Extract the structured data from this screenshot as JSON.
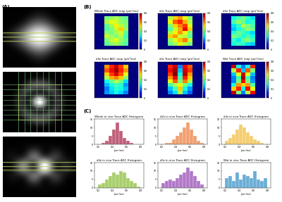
{
  "panel_labels": [
    "(A)",
    "(B)",
    "(C)"
  ],
  "chart_data": [
    {
      "type": "heatmap",
      "title": "Whole Trace ADC map (μm²/ms)",
      "tick_labels": false,
      "colorbar_range": [
        0,
        0.8
      ],
      "colorbar_ticks": [
        0,
        0.2,
        0.4,
        0.6,
        0.8
      ],
      "cells": [
        [
          0,
          0,
          0,
          0,
          0,
          0,
          0,
          0,
          0
        ],
        [
          0,
          0,
          0.4,
          0.42,
          0.45,
          0.4,
          0.38,
          0,
          0
        ],
        [
          0,
          0,
          0.45,
          0.5,
          0.48,
          0.42,
          0.4,
          0,
          0
        ],
        [
          0,
          0,
          0.38,
          0.44,
          0.52,
          0.46,
          0.41,
          0,
          0
        ],
        [
          0,
          0,
          0.36,
          0.4,
          0.47,
          0.55,
          0.43,
          0,
          0
        ],
        [
          0,
          0,
          0.42,
          0.39,
          0.44,
          0.48,
          0.37,
          0,
          0
        ],
        [
          0,
          0,
          0.47,
          0.43,
          0.4,
          0.45,
          0.35,
          0,
          0
        ],
        [
          0,
          0,
          0.4,
          0.46,
          0.5,
          0.42,
          0.38,
          0,
          0
        ],
        [
          0,
          0,
          0.37,
          0.41,
          0.44,
          0.4,
          0.36,
          0,
          0
        ],
        [
          0,
          0,
          0,
          0,
          0,
          0,
          0,
          0,
          0
        ]
      ]
    },
    {
      "type": "heatmap",
      "title": "d2z Trace ADC map (μm²/ms)",
      "tick_labels": false,
      "colorbar_range": [
        0,
        0.8
      ],
      "colorbar_ticks": [
        0,
        0.2,
        0.4,
        0.6,
        0.8
      ],
      "cells": [
        [
          0,
          0,
          0,
          0,
          0,
          0,
          0,
          0,
          0
        ],
        [
          0,
          0,
          0.45,
          0.55,
          0.6,
          0.5,
          0.42,
          0,
          0
        ],
        [
          0,
          0,
          0.5,
          0.65,
          0.7,
          0.58,
          0.45,
          0,
          0
        ],
        [
          0,
          0,
          0.4,
          0.55,
          0.62,
          0.68,
          0.5,
          0,
          0
        ],
        [
          0,
          0,
          0.35,
          0.48,
          0.58,
          0.72,
          0.55,
          0,
          0
        ],
        [
          0,
          0,
          0.45,
          0.52,
          0.6,
          0.5,
          0.4,
          0,
          0
        ],
        [
          0,
          0,
          0.55,
          0.6,
          0.48,
          0.45,
          0.38,
          0,
          0
        ],
        [
          0,
          0,
          0.42,
          0.5,
          0.56,
          0.62,
          0.47,
          0,
          0
        ],
        [
          0,
          0,
          0.38,
          0.44,
          0.5,
          0.46,
          0.4,
          0,
          0
        ],
        [
          0,
          0,
          0,
          0,
          0,
          0,
          0,
          0,
          0
        ]
      ]
    },
    {
      "type": "heatmap",
      "title": "d3z Trace ADC map (μm²/ms)",
      "tick_labels": false,
      "colorbar_range": [
        0,
        0.8
      ],
      "colorbar_ticks": [
        0,
        0.2,
        0.4,
        0.6,
        0.8
      ],
      "cells": [
        [
          0,
          0,
          0,
          0,
          0,
          0,
          0,
          0,
          0
        ],
        [
          0,
          0,
          0.3,
          0.35,
          0.4,
          0.33,
          0.28,
          0,
          0
        ],
        [
          0,
          0,
          0.35,
          0.42,
          0.38,
          0.3,
          0.32,
          0,
          0
        ],
        [
          0,
          0,
          0.28,
          0.33,
          0.45,
          0.4,
          0.35,
          0,
          0
        ],
        [
          0,
          0,
          0.25,
          0.3,
          0.36,
          0.42,
          0.38,
          0,
          0
        ],
        [
          0,
          0,
          0.32,
          0.38,
          0.34,
          0.3,
          0.27,
          0,
          0
        ],
        [
          0,
          0,
          0.4,
          0.36,
          0.31,
          0.35,
          0.3,
          0,
          0
        ],
        [
          0,
          0,
          0.33,
          0.29,
          0.37,
          0.41,
          0.34,
          0,
          0
        ],
        [
          0,
          0,
          0.3,
          0.34,
          0.32,
          0.28,
          0.26,
          0,
          0
        ],
        [
          0,
          0,
          0,
          0,
          0,
          0,
          0,
          0,
          0
        ]
      ]
    },
    {
      "type": "heatmap",
      "title": "d4z Trace ADC map (μm²/ms)",
      "tick_labels": false,
      "colorbar_range": [
        0,
        0.8
      ],
      "colorbar_ticks": [
        0,
        0.2,
        0.4,
        0.6,
        0.8
      ],
      "cells": [
        [
          0,
          0,
          0,
          0,
          0,
          0,
          0,
          0,
          0
        ],
        [
          0,
          0,
          0.6,
          0.7,
          0.75,
          0.68,
          0.55,
          0,
          0
        ],
        [
          0,
          0,
          0.65,
          0.72,
          0.78,
          0.7,
          0.6,
          0,
          0
        ],
        [
          0,
          0,
          0.55,
          0.68,
          0.74,
          0.66,
          0.5,
          0,
          0
        ],
        [
          0,
          0,
          0.45,
          0.58,
          0.62,
          0.55,
          0.42,
          0,
          0
        ],
        [
          0,
          0,
          0.3,
          0.38,
          0.45,
          0.4,
          0.28,
          0,
          0
        ],
        [
          0,
          0,
          0.25,
          0.3,
          0.35,
          0.32,
          0.22,
          0,
          0
        ],
        [
          0,
          0,
          0.2,
          0.28,
          0.32,
          0.3,
          0.25,
          0,
          0
        ],
        [
          0,
          0,
          0.22,
          0.26,
          0.3,
          0.27,
          0.2,
          0,
          0
        ],
        [
          0,
          0,
          0,
          0,
          0,
          0,
          0,
          0,
          0
        ]
      ]
    },
    {
      "type": "heatmap",
      "title": "d5z Trace ADC map (μm²/ms)",
      "tick_labels": false,
      "colorbar_range": [
        0,
        0.8
      ],
      "colorbar_ticks": [
        0,
        0.2,
        0.4,
        0.6,
        0.8
      ],
      "cells": [
        [
          0,
          0,
          0,
          0,
          0,
          0,
          0,
          0,
          0
        ],
        [
          0,
          0,
          0.7,
          0.75,
          0.2,
          0.72,
          0.65,
          0,
          0
        ],
        [
          0,
          0,
          0.72,
          0.78,
          0.25,
          0.74,
          0.68,
          0,
          0
        ],
        [
          0,
          0,
          0.68,
          0.8,
          0.3,
          0.76,
          0.6,
          0,
          0
        ],
        [
          0,
          0,
          0.6,
          0.72,
          0.35,
          0.7,
          0.55,
          0,
          0
        ],
        [
          0,
          0,
          0.5,
          0.65,
          0.4,
          0.62,
          0.45,
          0,
          0
        ],
        [
          0,
          0,
          0.35,
          0.45,
          0.5,
          0.4,
          0.3,
          0,
          0
        ],
        [
          0,
          0,
          0.25,
          0.35,
          0.55,
          0.3,
          0.22,
          0,
          0
        ],
        [
          0,
          0,
          0.2,
          0.28,
          0.45,
          0.25,
          0.18,
          0,
          0
        ],
        [
          0,
          0,
          0,
          0,
          0,
          0,
          0,
          0,
          0
        ]
      ]
    },
    {
      "type": "heatmap",
      "title": "Wat Trace ADC map (μm²/ms)",
      "tick_labels": false,
      "colorbar_range": [
        0,
        0.8
      ],
      "colorbar_ticks": [
        0,
        0.2,
        0.4,
        0.6,
        0.8
      ],
      "cells": [
        [
          0,
          0,
          0,
          0,
          0,
          0,
          0,
          0,
          0
        ],
        [
          0,
          0,
          0.75,
          0.3,
          0.2,
          0.3,
          0.7,
          0,
          0
        ],
        [
          0,
          0,
          0.45,
          0.7,
          0.25,
          0.65,
          0.4,
          0,
          0
        ],
        [
          0,
          0,
          0.25,
          0.5,
          0.75,
          0.5,
          0.25,
          0,
          0
        ],
        [
          0,
          0,
          0.2,
          0.35,
          0.78,
          0.35,
          0.2,
          0,
          0
        ],
        [
          0,
          0,
          0.2,
          0.4,
          0.72,
          0.4,
          0.22,
          0,
          0
        ],
        [
          0,
          0,
          0.3,
          0.6,
          0.55,
          0.6,
          0.35,
          0,
          0
        ],
        [
          0,
          0,
          0.55,
          0.7,
          0.3,
          0.72,
          0.5,
          0,
          0
        ],
        [
          0,
          0,
          0.75,
          0.4,
          0.2,
          0.45,
          0.72,
          0,
          0
        ],
        [
          0,
          0,
          0,
          0,
          0,
          0,
          0,
          0,
          0
        ]
      ]
    },
    {
      "type": "histogram",
      "title": "Whole in vivo Trace ADC Histogram",
      "xlabel": "(μm²/ms)",
      "color": "#c0607a",
      "xlim": [
        0.15,
        0.85
      ],
      "xticks": [
        0.2,
        0.4,
        0.6,
        0.8
      ],
      "ylim": [
        0,
        15
      ],
      "yticks": [
        0,
        5,
        10,
        15
      ],
      "bins": [
        0.2,
        0.25,
        0.3,
        0.35,
        0.4,
        0.45,
        0.5,
        0.55,
        0.6,
        0.65,
        0.7,
        0.75,
        0.8
      ],
      "counts": [
        0,
        1,
        2,
        5,
        9,
        13,
        8,
        4,
        2,
        1,
        0,
        0
      ]
    },
    {
      "type": "histogram",
      "title": "d2z in vivo Trace ADC Histogram",
      "xlabel": "(μm²/ms)",
      "color": "#f0a070",
      "xlim": [
        0.15,
        0.85
      ],
      "xticks": [
        0.2,
        0.4,
        0.6,
        0.8
      ],
      "ylim": [
        0,
        15
      ],
      "yticks": [
        0,
        5,
        10,
        15
      ],
      "bins": [
        0.2,
        0.25,
        0.3,
        0.35,
        0.4,
        0.45,
        0.5,
        0.55,
        0.6,
        0.65,
        0.7,
        0.75,
        0.8
      ],
      "counts": [
        0,
        1,
        1,
        3,
        5,
        7,
        10,
        13,
        9,
        5,
        2,
        1
      ]
    },
    {
      "type": "histogram",
      "title": "d3z in vivo Trace ADC Histogram",
      "xlabel": "(μm²/ms)",
      "color": "#f5cd70",
      "xlim": [
        0.15,
        0.85
      ],
      "xticks": [
        0.2,
        0.4,
        0.6,
        0.8
      ],
      "ylim": [
        0,
        15
      ],
      "yticks": [
        0,
        5,
        10,
        15
      ],
      "bins": [
        0.2,
        0.25,
        0.3,
        0.35,
        0.4,
        0.45,
        0.5,
        0.55,
        0.6,
        0.65,
        0.7,
        0.75,
        0.8
      ],
      "counts": [
        2,
        4,
        6,
        9,
        12,
        10,
        7,
        5,
        3,
        2,
        1,
        0
      ]
    },
    {
      "type": "histogram",
      "title": "d4z in vivo Trace ADC Histogram",
      "xlabel": "(μm²/ms)",
      "color": "#a8cf6a",
      "xlim": [
        0.15,
        0.85
      ],
      "xticks": [
        0.2,
        0.4,
        0.6,
        0.8
      ],
      "ylim": [
        0,
        15
      ],
      "yticks": [
        0,
        5,
        10,
        15
      ],
      "bins": [
        0.2,
        0.25,
        0.3,
        0.35,
        0.4,
        0.45,
        0.5,
        0.55,
        0.6,
        0.65,
        0.7,
        0.75,
        0.8
      ],
      "counts": [
        2,
        3,
        5,
        7,
        9,
        8,
        10,
        9,
        6,
        4,
        3,
        1
      ]
    },
    {
      "type": "histogram",
      "title": "d5z in vivo Trace ADC Histogram",
      "xlabel": "(μm²/ms)",
      "color": "#b278c8",
      "xlim": [
        0.15,
        0.85
      ],
      "xticks": [
        0.2,
        0.4,
        0.6,
        0.8
      ],
      "ylim": [
        0,
        15
      ],
      "yticks": [
        0,
        5,
        10,
        15
      ],
      "bins": [
        0.2,
        0.25,
        0.3,
        0.35,
        0.4,
        0.45,
        0.5,
        0.55,
        0.6,
        0.65,
        0.7,
        0.75,
        0.8
      ],
      "counts": [
        3,
        4,
        5,
        4,
        6,
        8,
        9,
        12,
        10,
        7,
        4,
        2
      ]
    },
    {
      "type": "histogram",
      "title": "Wat in vivo Trace ADC Histogram",
      "xlabel": "(μm²/ms)",
      "color": "#6aaed6",
      "xlim": [
        0.15,
        0.85
      ],
      "xticks": [
        0.2,
        0.4,
        0.6,
        0.8
      ],
      "ylim": [
        0,
        15
      ],
      "yticks": [
        0,
        5,
        10,
        15
      ],
      "bins": [
        0.2,
        0.25,
        0.3,
        0.35,
        0.4,
        0.45,
        0.5,
        0.55,
        0.6,
        0.65,
        0.7,
        0.75,
        0.8
      ],
      "counts": [
        6,
        7,
        4,
        9,
        5,
        8,
        7,
        6,
        10,
        5,
        4,
        6
      ]
    }
  ]
}
